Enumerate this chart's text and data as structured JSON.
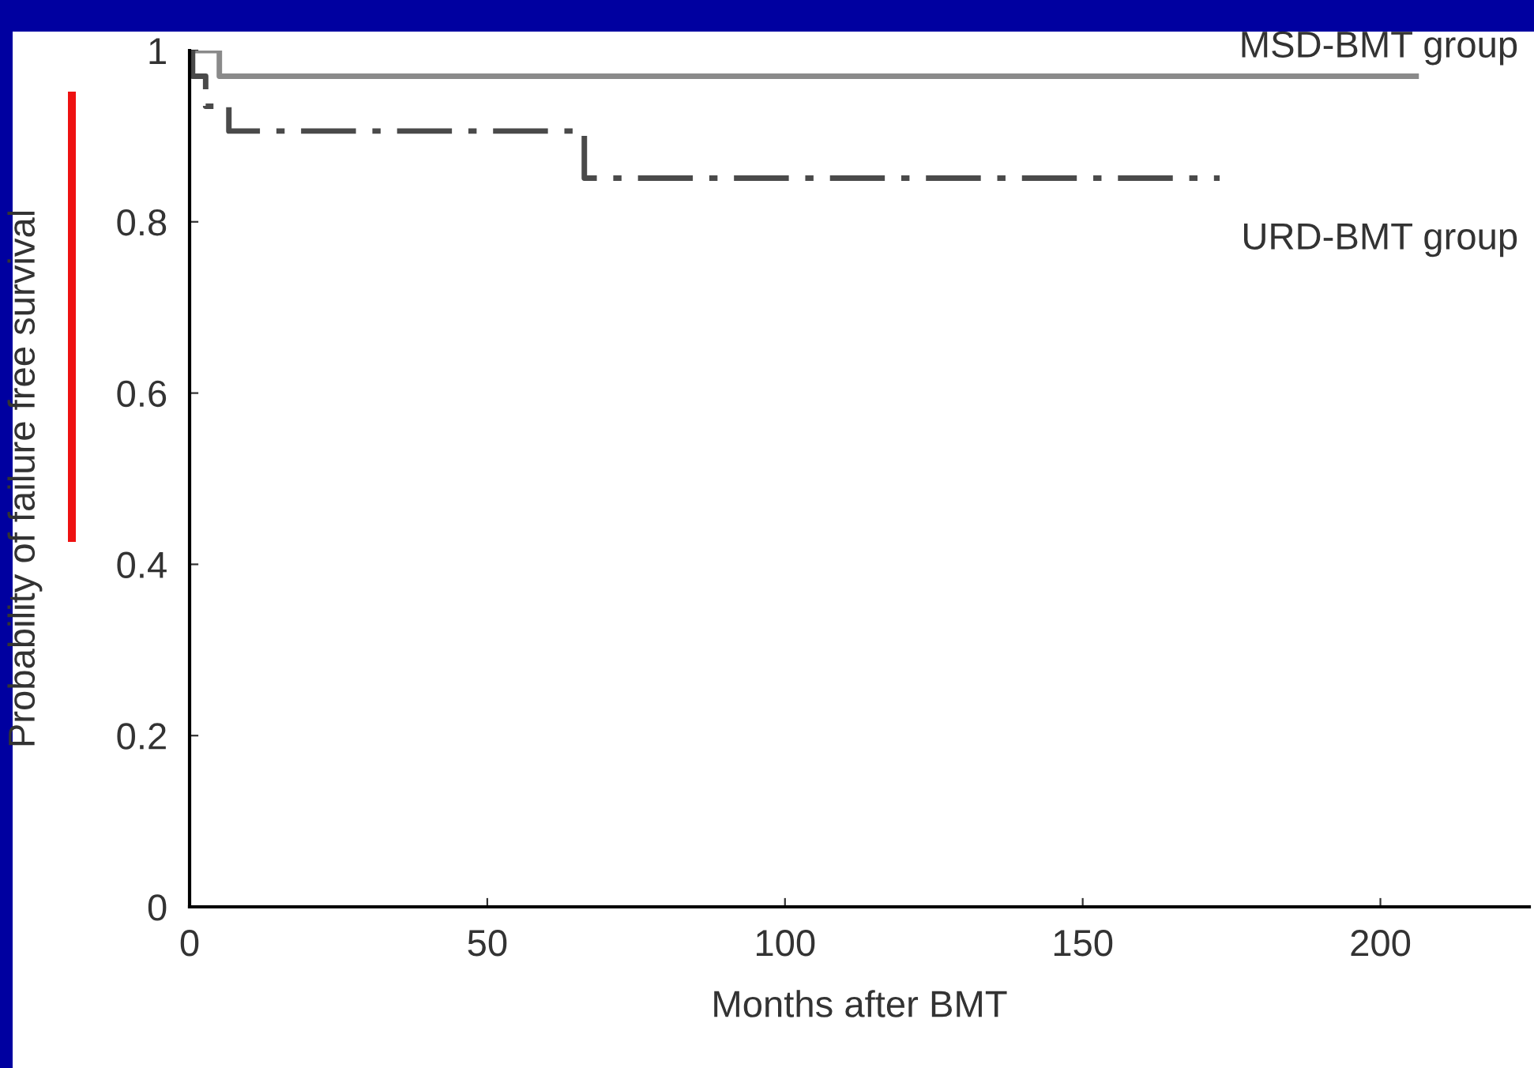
{
  "chart_data": {
    "type": "step",
    "xlabel": "Months after BMT",
    "ylabel": "Probability of failure free survival",
    "xlim": [
      0,
      225
    ],
    "xticks": [
      0,
      50,
      100,
      150,
      200
    ],
    "ylim": [
      0,
      1
    ],
    "yticks": [
      0,
      0.2,
      0.4,
      0.6,
      0.8,
      1
    ],
    "grid": false,
    "legend": false,
    "marker": "none",
    "series": [
      {
        "name": "MSD-BMT group",
        "color": "#8a8a8a",
        "line_style": "solid",
        "x": [
          0,
          5,
          206
        ],
        "values": [
          1,
          0.97,
          0.97
        ]
      },
      {
        "name": "URD-BMT group",
        "color": "#4a4a4a",
        "line_style": "dashed",
        "x": [
          0,
          0.5,
          2.7,
          6.6,
          66.3,
          173
        ],
        "values": [
          1,
          0.97,
          0.935,
          0.906,
          0.851,
          0.851
        ]
      }
    ]
  }
}
